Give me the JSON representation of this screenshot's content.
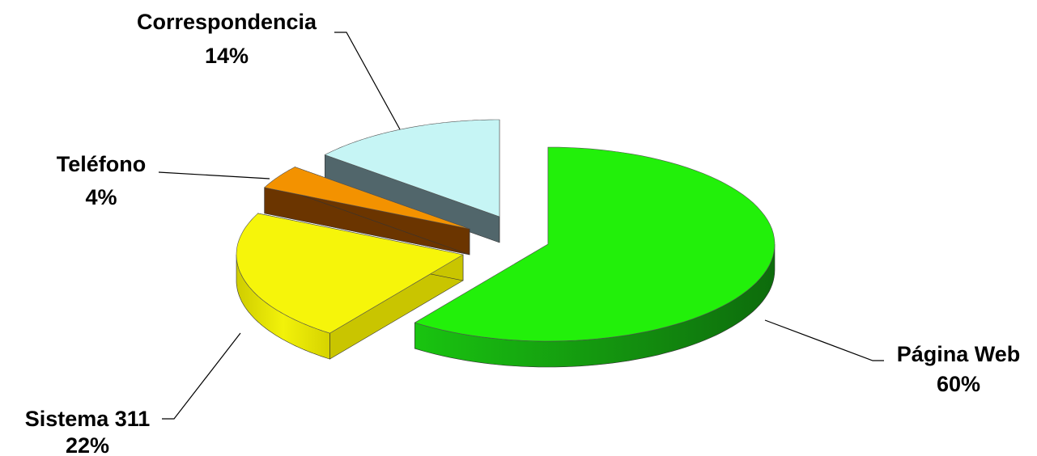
{
  "chart_data": {
    "type": "pie",
    "title": "",
    "style": "3d-exploded",
    "legend": "none",
    "categories": [
      "Página Web",
      "Sistema 311",
      "Teléfono",
      "Correspondencia"
    ],
    "values": [
      60,
      22,
      4,
      14
    ],
    "value_labels": [
      "60%",
      "22%",
      "4%",
      "14%"
    ],
    "colors": [
      "#22f00a",
      "#f6f50a",
      "#f39200",
      "#c6f5f5"
    ],
    "side_colors": [
      "#14a314",
      "#c9c500",
      "#6b3500",
      "#51666b"
    ]
  }
}
